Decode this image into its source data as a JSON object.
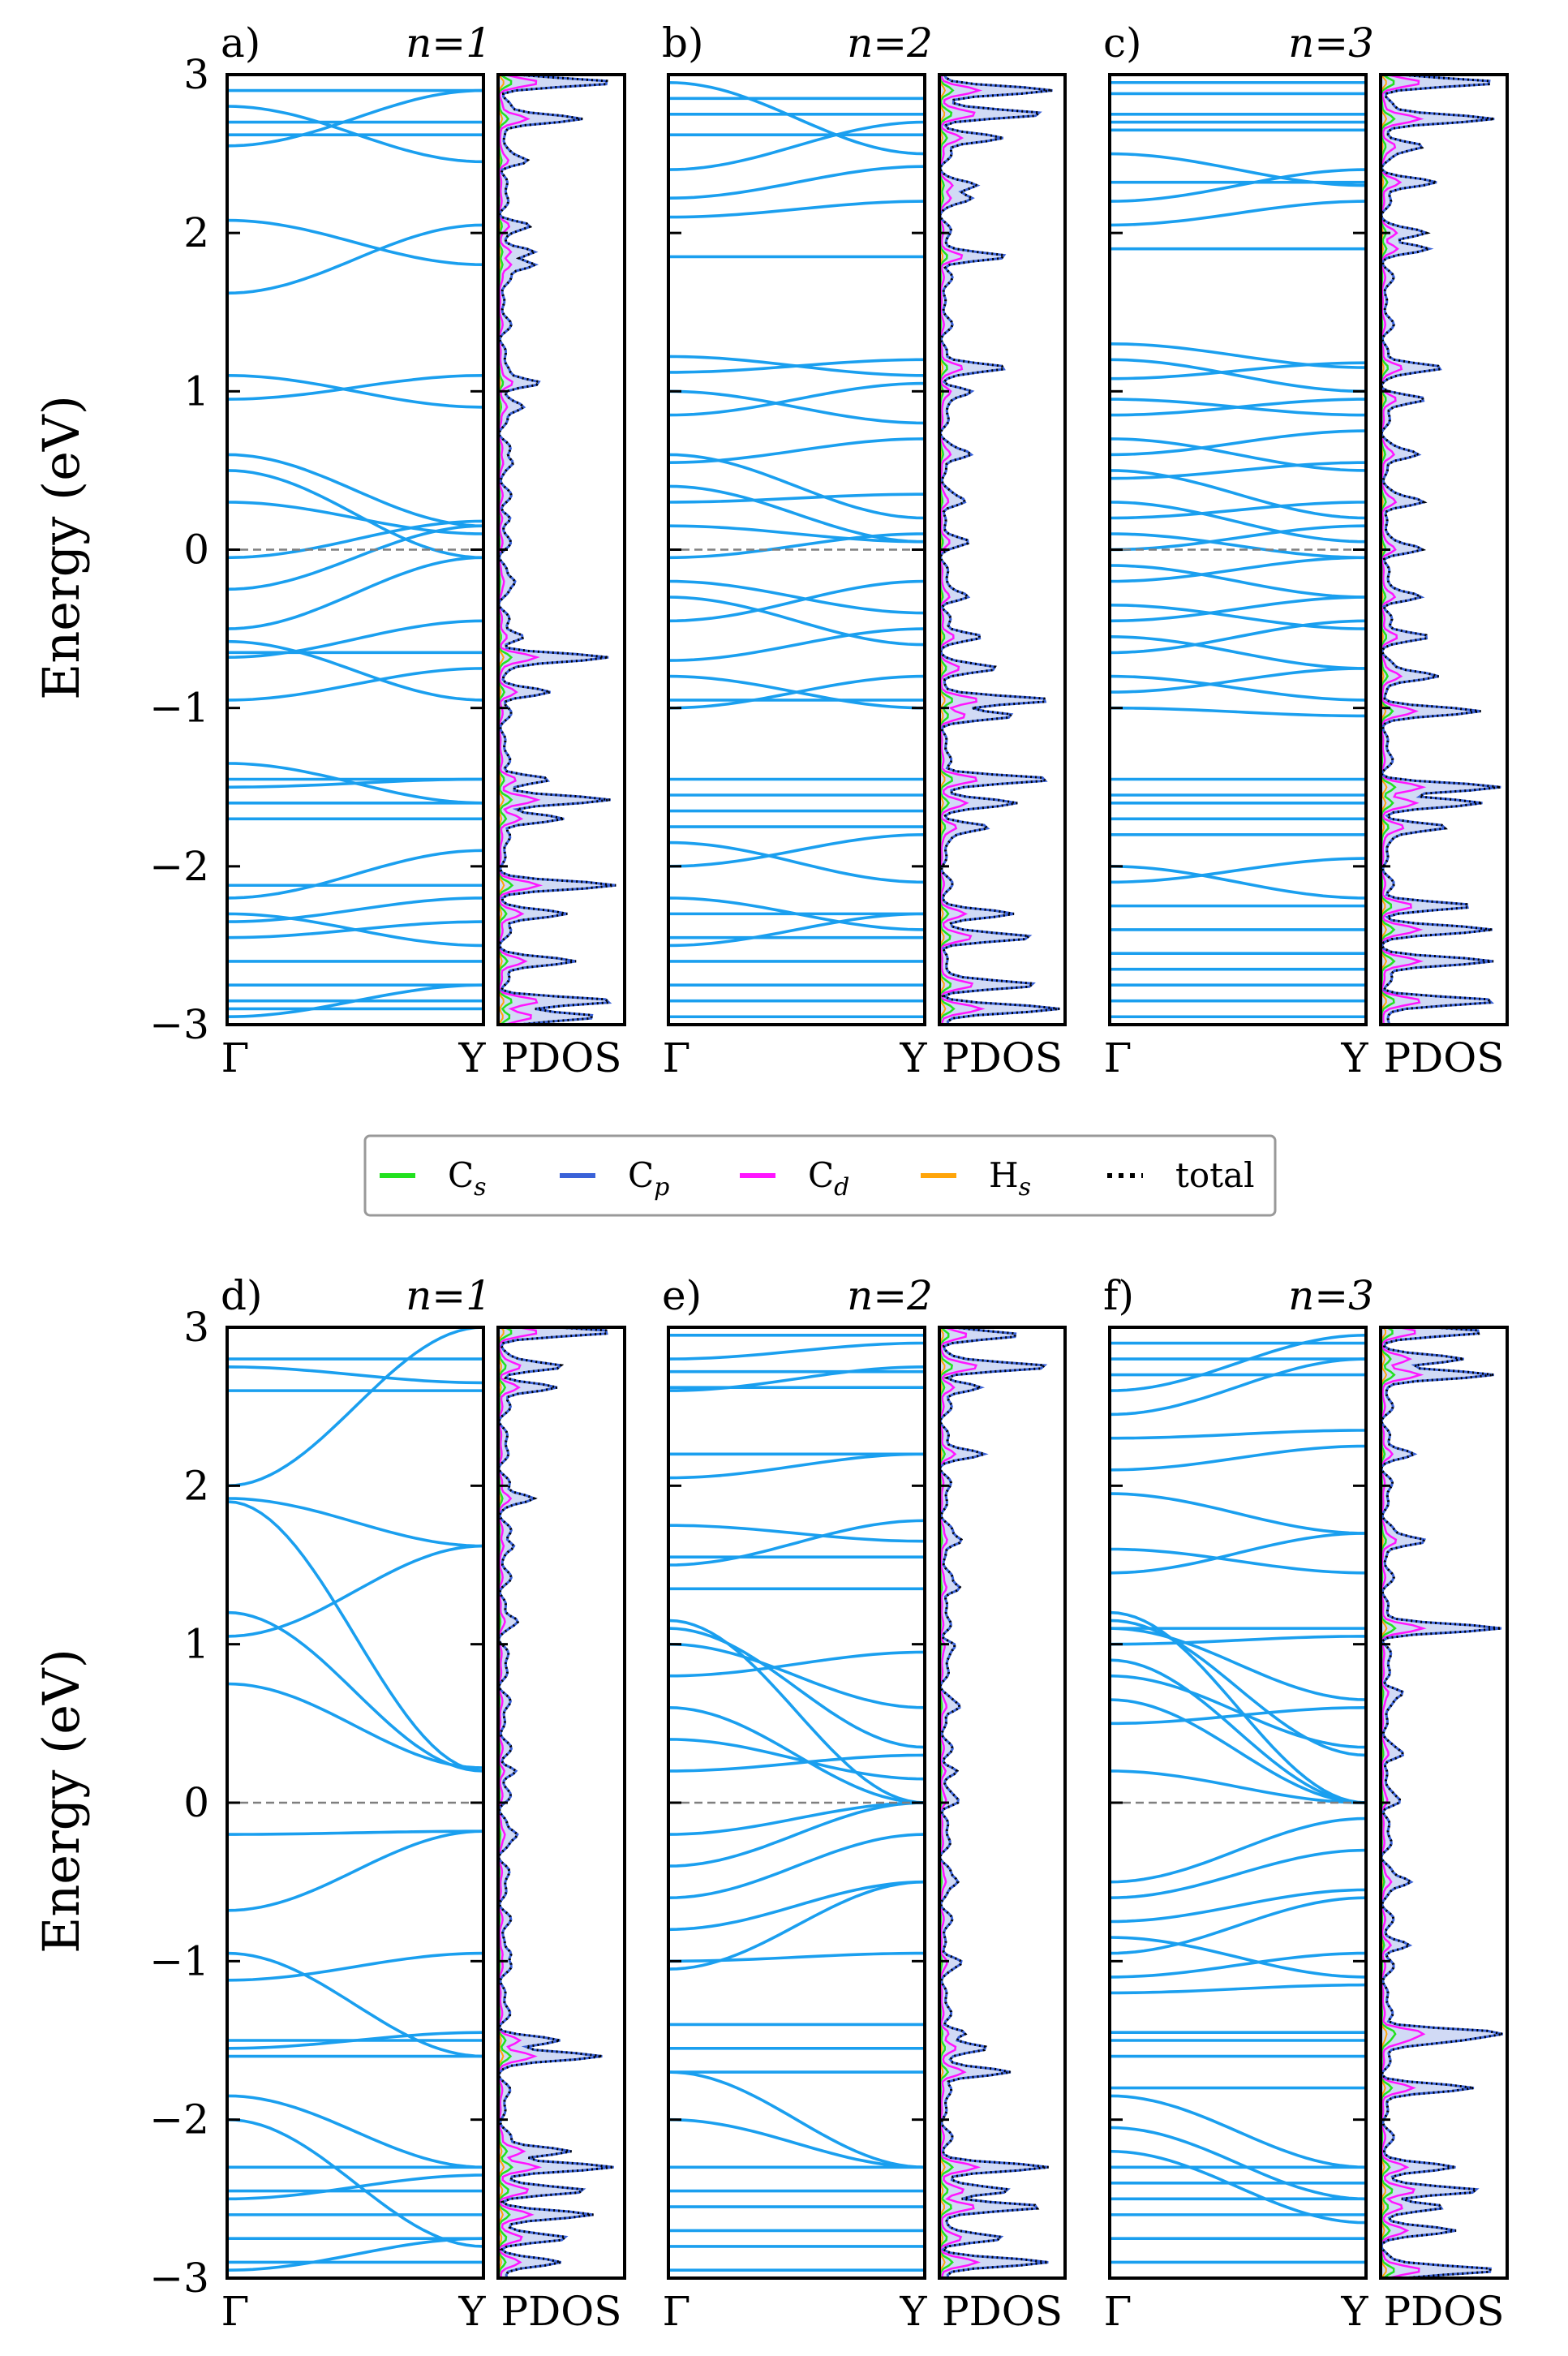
{
  "chart_data": {
    "type": "line",
    "description_axes": {
      "ylabel": "Energy (eV)",
      "ylim": [
        -3,
        3
      ],
      "yticks": [
        -3,
        -2,
        -1,
        0,
        1,
        2,
        3
      ],
      "ytick_labels": [
        "−3",
        "−2",
        "−1",
        "0",
        "1",
        "2",
        "3"
      ],
      "band_xtick_labels": [
        "Γ",
        "Y"
      ],
      "pdos_xlabel": "PDOS",
      "fermi_level": 0
    },
    "legend": [
      {
        "key": "cs",
        "label": "C",
        "sub": "s",
        "color": "#22e11f",
        "style": "solid"
      },
      {
        "key": "cp",
        "label": "C",
        "sub": "p",
        "color": "#3a62d8",
        "style": "solid"
      },
      {
        "key": "cd",
        "label": "C",
        "sub": "d",
        "color": "#ff15ff",
        "style": "solid"
      },
      {
        "key": "hs",
        "label": "H",
        "sub": "s",
        "color": "#ffa50a",
        "style": "solid"
      },
      {
        "key": "total",
        "label": "total",
        "sub": "",
        "color": "#000000",
        "style": "dotted"
      }
    ],
    "colors": {
      "band": "#1a9fef",
      "pdos_fill": "#c9d4f3",
      "fermi": "#7f7f7f"
    },
    "panels": [
      {
        "id": "a",
        "label": "a)",
        "title": "n=1",
        "flat": [
          2.9,
          2.7,
          2.62,
          -0.65,
          -1.45,
          -1.6,
          -1.7,
          -2.12,
          -2.6,
          -2.75,
          -2.85,
          -2.9
        ],
        "bands": [
          [
            2.8,
            2.45
          ],
          [
            2.55,
            2.9
          ],
          [
            2.08,
            1.8
          ],
          [
            1.62,
            2.05
          ],
          [
            1.1,
            0.9
          ],
          [
            0.95,
            1.1
          ],
          [
            0.6,
            0.15
          ],
          [
            0.5,
            -0.05
          ],
          [
            0.3,
            0.1
          ],
          [
            -0.05,
            0.18
          ],
          [
            -0.25,
            0.15
          ],
          [
            -0.5,
            -0.05
          ],
          [
            -0.58,
            -0.95
          ],
          [
            -0.95,
            -0.75
          ],
          [
            -0.68,
            -0.45
          ],
          [
            -1.35,
            -1.6
          ],
          [
            -1.5,
            -1.45
          ],
          [
            -2.2,
            -1.9
          ],
          [
            -2.35,
            -2.2
          ],
          [
            -2.3,
            -2.5
          ],
          [
            -2.45,
            -2.35
          ],
          [
            -2.95,
            -2.75
          ]
        ],
        "pdos_peaks": [
          [
            2.95,
            0.95
          ],
          [
            2.72,
            0.7
          ],
          [
            2.45,
            0.2
          ],
          [
            2.05,
            0.2
          ],
          [
            1.88,
            0.25
          ],
          [
            1.8,
            0.3
          ],
          [
            1.05,
            0.35
          ],
          [
            0.9,
            0.15
          ],
          [
            0.55,
            0.08
          ],
          [
            0.2,
            0.05
          ],
          [
            -0.2,
            0.08
          ],
          [
            -0.55,
            0.15
          ],
          [
            -0.68,
            0.9
          ],
          [
            -0.9,
            0.4
          ],
          [
            -1.45,
            0.42
          ],
          [
            -1.58,
            0.9
          ],
          [
            -1.7,
            0.55
          ],
          [
            -2.12,
            0.9
          ],
          [
            -2.3,
            0.55
          ],
          [
            -2.6,
            0.6
          ],
          [
            -2.85,
            0.95
          ],
          [
            -2.95,
            0.8
          ]
        ]
      },
      {
        "id": "b",
        "label": "b)",
        "title": "n=2",
        "flat": [
          2.85,
          2.75,
          2.62,
          1.85,
          -0.95,
          -1.45,
          -1.55,
          -1.65,
          -1.75,
          -2.3,
          -2.45,
          -2.6,
          -2.75,
          -2.85,
          -2.95
        ],
        "bands": [
          [
            2.95,
            2.5
          ],
          [
            2.4,
            2.7
          ],
          [
            2.22,
            2.42
          ],
          [
            2.1,
            2.2
          ],
          [
            1.22,
            1.1
          ],
          [
            1.12,
            1.2
          ],
          [
            1.0,
            0.8
          ],
          [
            0.85,
            1.05
          ],
          [
            0.6,
            0.2
          ],
          [
            0.55,
            0.7
          ],
          [
            0.4,
            0.05
          ],
          [
            0.3,
            0.35
          ],
          [
            0.15,
            0.05
          ],
          [
            -0.05,
            0.1
          ],
          [
            -0.2,
            -0.4
          ],
          [
            -0.3,
            -0.6
          ],
          [
            -0.45,
            -0.2
          ],
          [
            -0.7,
            -0.5
          ],
          [
            -0.8,
            -1.0
          ],
          [
            -1.0,
            -0.8
          ],
          [
            -1.85,
            -2.1
          ],
          [
            -2.0,
            -1.8
          ],
          [
            -2.2,
            -2.4
          ],
          [
            -2.5,
            -2.3
          ]
        ],
        "pdos_peaks": [
          [
            2.9,
            0.95
          ],
          [
            2.75,
            0.85
          ],
          [
            2.6,
            0.5
          ],
          [
            2.3,
            0.25
          ],
          [
            2.22,
            0.2
          ],
          [
            1.85,
            0.55
          ],
          [
            1.15,
            0.5
          ],
          [
            1.0,
            0.25
          ],
          [
            0.6,
            0.2
          ],
          [
            0.3,
            0.15
          ],
          [
            0.05,
            0.15
          ],
          [
            -0.3,
            0.2
          ],
          [
            -0.55,
            0.3
          ],
          [
            -0.75,
            0.4
          ],
          [
            -0.95,
            0.95
          ],
          [
            -1.05,
            0.55
          ],
          [
            -1.45,
            0.95
          ],
          [
            -1.6,
            0.6
          ],
          [
            -1.75,
            0.4
          ],
          [
            -2.3,
            0.6
          ],
          [
            -2.45,
            0.75
          ],
          [
            -2.75,
            0.8
          ],
          [
            -2.9,
            0.95
          ]
        ]
      },
      {
        "id": "c",
        "label": "c)",
        "title": "n=3",
        "flat": [
          2.95,
          2.88,
          2.75,
          2.7,
          2.65,
          2.32,
          1.9,
          -1.45,
          -1.55,
          -1.6,
          -1.7,
          -1.8,
          -2.25,
          -2.4,
          -2.55,
          -2.65,
          -2.75,
          -2.85,
          -2.95
        ],
        "bands": [
          [
            2.5,
            2.3
          ],
          [
            2.2,
            2.4
          ],
          [
            2.05,
            2.2
          ],
          [
            1.3,
            1.15
          ],
          [
            1.2,
            1.0
          ],
          [
            1.08,
            1.18
          ],
          [
            0.95,
            0.85
          ],
          [
            0.85,
            0.95
          ],
          [
            0.7,
            0.5
          ],
          [
            0.6,
            0.75
          ],
          [
            0.5,
            0.2
          ],
          [
            0.45,
            0.55
          ],
          [
            0.3,
            0.05
          ],
          [
            0.2,
            0.3
          ],
          [
            0.1,
            -0.05
          ],
          [
            0.0,
            0.15
          ],
          [
            -0.1,
            -0.3
          ],
          [
            -0.2,
            -0.05
          ],
          [
            -0.35,
            -0.5
          ],
          [
            -0.45,
            -0.3
          ],
          [
            -0.55,
            -0.75
          ],
          [
            -0.65,
            -0.45
          ],
          [
            -0.8,
            -0.95
          ],
          [
            -0.9,
            -0.75
          ],
          [
            -1.0,
            -1.05
          ],
          [
            -2.0,
            -2.2
          ],
          [
            -2.1,
            -1.95
          ]
        ],
        "pdos_peaks": [
          [
            2.95,
            0.95
          ],
          [
            2.72,
            0.95
          ],
          [
            2.55,
            0.3
          ],
          [
            2.32,
            0.4
          ],
          [
            2.0,
            0.3
          ],
          [
            1.9,
            0.35
          ],
          [
            1.15,
            0.45
          ],
          [
            0.95,
            0.3
          ],
          [
            0.6,
            0.25
          ],
          [
            0.3,
            0.3
          ],
          [
            0.0,
            0.3
          ],
          [
            -0.3,
            0.3
          ],
          [
            -0.55,
            0.35
          ],
          [
            -0.8,
            0.45
          ],
          [
            -1.02,
            0.75
          ],
          [
            -1.5,
            0.95
          ],
          [
            -1.6,
            0.8
          ],
          [
            -1.75,
            0.55
          ],
          [
            -2.25,
            0.75
          ],
          [
            -2.4,
            0.85
          ],
          [
            -2.6,
            0.9
          ],
          [
            -2.85,
            0.95
          ]
        ]
      },
      {
        "id": "d",
        "label": "d)",
        "title": "n=1",
        "flat": [
          2.8,
          2.6,
          -1.5,
          -1.6,
          -2.3,
          -2.45,
          -2.6,
          -2.75,
          -2.9
        ],
        "bands": [
          [
            2.75,
            2.65
          ],
          [
            2.0,
            3.0
          ],
          [
            1.92,
            1.62
          ],
          [
            1.9,
            0.2
          ],
          [
            1.2,
            0.2
          ],
          [
            1.05,
            1.62
          ],
          [
            0.75,
            0.22
          ],
          [
            -0.2,
            -0.18
          ],
          [
            -0.68,
            -0.18
          ],
          [
            -0.95,
            -1.6
          ],
          [
            -1.12,
            -0.95
          ],
          [
            -1.55,
            -1.45
          ],
          [
            -1.85,
            -2.3
          ],
          [
            -2.0,
            -2.8
          ],
          [
            -2.5,
            -2.35
          ],
          [
            -2.95,
            -2.75
          ]
        ],
        "pdos_peaks": [
          [
            2.97,
            0.95
          ],
          [
            2.75,
            0.5
          ],
          [
            2.62,
            0.45
          ],
          [
            1.92,
            0.25
          ],
          [
            1.62,
            0.1
          ],
          [
            1.15,
            0.08
          ],
          [
            0.2,
            0.1
          ],
          [
            -0.2,
            0.1
          ],
          [
            -0.95,
            0.08
          ],
          [
            -1.5,
            0.45
          ],
          [
            -1.6,
            0.82
          ],
          [
            -2.2,
            0.6
          ],
          [
            -2.3,
            0.95
          ],
          [
            -2.45,
            0.7
          ],
          [
            -2.6,
            0.75
          ],
          [
            -2.75,
            0.55
          ],
          [
            -2.9,
            0.45
          ]
        ]
      },
      {
        "id": "e",
        "label": "e)",
        "title": "n=2",
        "flat": [
          2.95,
          2.72,
          2.62,
          2.2,
          1.55,
          1.35,
          -1.4,
          -1.55,
          -1.7,
          -2.3,
          -2.45,
          -2.55,
          -2.7,
          -2.8,
          -2.95
        ],
        "bands": [
          [
            2.8,
            2.9
          ],
          [
            2.6,
            2.75
          ],
          [
            2.05,
            2.2
          ],
          [
            1.75,
            1.65
          ],
          [
            1.5,
            1.78
          ],
          [
            1.15,
            0.0
          ],
          [
            1.1,
            0.35
          ],
          [
            1.0,
            0.6
          ],
          [
            0.8,
            0.95
          ],
          [
            0.6,
            0.0
          ],
          [
            0.4,
            0.15
          ],
          [
            0.2,
            0.3
          ],
          [
            -0.2,
            0.0
          ],
          [
            -0.4,
            0.0
          ],
          [
            -0.6,
            -0.2
          ],
          [
            -0.8,
            -0.5
          ],
          [
            -1.0,
            -0.95
          ],
          [
            -1.05,
            -0.5
          ],
          [
            -1.7,
            -2.3
          ],
          [
            -2.0,
            -2.3
          ]
        ],
        "pdos_peaks": [
          [
            2.95,
            0.65
          ],
          [
            2.75,
            0.9
          ],
          [
            2.62,
            0.3
          ],
          [
            2.2,
            0.3
          ],
          [
            1.65,
            0.15
          ],
          [
            1.35,
            0.15
          ],
          [
            1.0,
            0.1
          ],
          [
            0.6,
            0.1
          ],
          [
            0.2,
            0.1
          ],
          [
            0.0,
            0.1
          ],
          [
            -0.5,
            0.1
          ],
          [
            -1.0,
            0.1
          ],
          [
            -1.45,
            0.2
          ],
          [
            -1.55,
            0.35
          ],
          [
            -1.7,
            0.6
          ],
          [
            -2.3,
            0.9
          ],
          [
            -2.45,
            0.55
          ],
          [
            -2.55,
            0.85
          ],
          [
            -2.75,
            0.5
          ],
          [
            -2.9,
            0.85
          ]
        ]
      },
      {
        "id": "f",
        "label": "f)",
        "title": "n=3",
        "flat": [
          2.9,
          2.8,
          2.7,
          1.1,
          -1.45,
          -1.5,
          -1.6,
          -1.8,
          -2.3,
          -2.4,
          -2.5,
          -2.6,
          -2.75,
          -2.9
        ],
        "bands": [
          [
            2.6,
            2.95
          ],
          [
            2.45,
            2.8
          ],
          [
            2.3,
            2.35
          ],
          [
            2.1,
            2.25
          ],
          [
            1.95,
            1.7
          ],
          [
            1.6,
            1.45
          ],
          [
            1.45,
            1.7
          ],
          [
            1.2,
            0.0
          ],
          [
            1.15,
            0.3
          ],
          [
            1.1,
            0.65
          ],
          [
            1.0,
            1.05
          ],
          [
            0.9,
            0.0
          ],
          [
            0.8,
            0.35
          ],
          [
            0.65,
            0.0
          ],
          [
            0.5,
            0.6
          ],
          [
            0.2,
            0.0
          ],
          [
            -0.5,
            -0.1
          ],
          [
            -0.6,
            -0.3
          ],
          [
            -0.75,
            -0.55
          ],
          [
            -0.85,
            -1.1
          ],
          [
            -0.95,
            -0.6
          ],
          [
            -1.1,
            -0.95
          ],
          [
            -1.2,
            -1.15
          ],
          [
            -1.85,
            -2.3
          ],
          [
            -2.05,
            -2.5
          ],
          [
            -2.2,
            -2.65
          ]
        ],
        "pdos_peaks": [
          [
            2.97,
            0.85
          ],
          [
            2.8,
            0.6
          ],
          [
            2.7,
            0.95
          ],
          [
            2.2,
            0.2
          ],
          [
            1.65,
            0.35
          ],
          [
            1.1,
            0.95
          ],
          [
            0.7,
            0.15
          ],
          [
            0.3,
            0.12
          ],
          [
            0.0,
            0.1
          ],
          [
            -0.5,
            0.2
          ],
          [
            -0.9,
            0.2
          ],
          [
            -1.45,
            0.95
          ],
          [
            -1.5,
            0.5
          ],
          [
            -1.8,
            0.7
          ],
          [
            -2.3,
            0.6
          ],
          [
            -2.45,
            0.8
          ],
          [
            -2.55,
            0.5
          ],
          [
            -2.7,
            0.55
          ],
          [
            -2.95,
            0.95
          ]
        ]
      }
    ]
  }
}
